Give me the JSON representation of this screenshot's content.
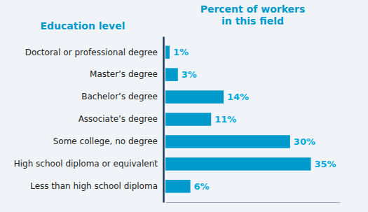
{
  "chart_data": {
    "type": "bar",
    "orientation": "horizontal",
    "ylabel": "Education level",
    "xlabel": "Percent of workers\nin this field",
    "categories": [
      "Doctoral or professional degree",
      "Master’s degree",
      "Bachelor’s degree",
      "Associate’s degree",
      "Some college, no degree",
      "High school diploma or equivalent",
      "Less than high school diploma"
    ],
    "values": [
      1,
      3,
      14,
      11,
      30,
      35,
      6
    ],
    "value_labels": [
      "1%",
      "3%",
      "14%",
      "11%",
      "30%",
      "35%",
      "6%"
    ],
    "data_labels": true,
    "color": "#0099cc",
    "xlim": [
      0,
      42
    ],
    "tick_labels": "y",
    "grid": false
  }
}
